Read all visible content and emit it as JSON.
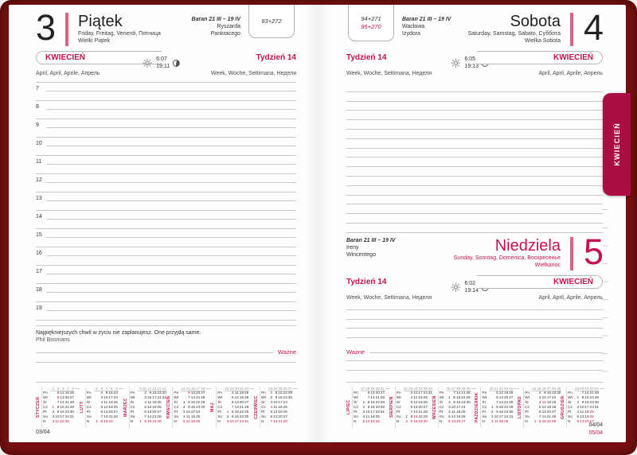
{
  "colors": {
    "accent": "#c4134c",
    "tab": "#ab0d44",
    "cover": "#7a1010",
    "rule_line": "#c7c7c7",
    "pink_bar": "#dc6480"
  },
  "tab_label": "KWIECIEŃ",
  "weekday_labels": [
    "Pn",
    "Wt",
    "Śr",
    "Cz",
    "Pt",
    "So",
    "N"
  ],
  "friday": {
    "day_number": "3",
    "day_name": "Piątek",
    "translations": "Friday, Freitag, Venerdi, Пятница",
    "holiday": "Wielki Piątek",
    "zodiac": "Baran 21 III – 19 IV",
    "nameday1": "Ryszarda",
    "nameday2": "Pankracego",
    "counter": "93+272",
    "month_label": "KWIECIEŃ",
    "month_translations": "April, April, Aprile, Апрель",
    "week_label": "Tydzień 14",
    "week_translations": "Week, Woche, Settimana, Неделя",
    "sunrise": "6:07",
    "sunset": "19:11",
    "hours": [
      "7",
      "8",
      "9",
      "10",
      "11",
      "12",
      "13",
      "14",
      "15",
      "16",
      "17",
      "18",
      "19"
    ],
    "quote": "Najpiękniejszych chwil w życiu nie zaplanujesz. One przyjdą same.",
    "quote_author": "Phil Bosmans",
    "important_label": "Ważne",
    "page_number": "03/04"
  },
  "saturday": {
    "day_number": "4",
    "day_name": "Sobota",
    "translations": "Saturday, Samstag, Sabato, Суббота",
    "holiday": "Wielka Sobota",
    "zodiac": "Baran 21 III – 19 IV",
    "nameday1": "Wacława",
    "nameday2": "Izydora",
    "counter1": "94+271",
    "counter2": "95+270",
    "month_label": "KWIECIEŃ",
    "month_translations": "April, April, Aprile, Апрель",
    "week_label": "Tydzień 14",
    "week_translations": "Week, Woche, Settimana, Неделя",
    "sunrise": "6:05",
    "sunset": "19:13"
  },
  "sunday": {
    "day_number": "5",
    "day_name": "Niedziela",
    "translations": "Sunday, Sonntag, Domenica, Воскресенье",
    "holiday": "Wielkanoc",
    "zodiac": "Baran 21 III – 19 IV",
    "nameday1": "Ireny",
    "nameday2": "Wincentego",
    "month_label": "KWIECIEŃ",
    "month_translations": "April, April, Aprile, Апрель",
    "week_label": "Tydzień 14",
    "week_translations": "Week, Woche, Settimana, Неделя",
    "sunrise": "6:02",
    "sunset": "19:14",
    "important_label": "Ważne"
  },
  "right_page_numbers": {
    "line1": "04/04",
    "line2": "05/04"
  },
  "mini_calendars_left": [
    {
      "name": "STYCZEŃ",
      "wk": [
        "1",
        "2",
        "3",
        "4",
        "5"
      ],
      "red": [
        "1",
        "6"
      ],
      "rows": [
        [
          "",
          "5",
          "12",
          "19",
          "26"
        ],
        [
          "",
          "6",
          "13",
          "20",
          "27"
        ],
        [
          "",
          "7",
          "14",
          "21",
          "28"
        ],
        [
          "1",
          "8",
          "15",
          "22",
          "29"
        ],
        [
          "2",
          "9",
          "16",
          "23",
          "30"
        ],
        [
          "3",
          "10",
          "17",
          "24",
          "31"
        ],
        [
          "4",
          "11",
          "18",
          "25",
          ""
        ]
      ]
    },
    {
      "name": "LUTY",
      "wk": [
        "5",
        "6",
        "7",
        "8",
        "9"
      ],
      "red": [],
      "rows": [
        [
          "",
          "2",
          "9",
          "16",
          "23"
        ],
        [
          "",
          "3",
          "10",
          "17",
          "24"
        ],
        [
          "",
          "4",
          "11",
          "18",
          "25"
        ],
        [
          "",
          "5",
          "12",
          "19",
          "26"
        ],
        [
          "",
          "6",
          "13",
          "20",
          "27"
        ],
        [
          "",
          "7",
          "14",
          "21",
          "28"
        ],
        [
          "1",
          "8",
          "15",
          "22",
          ""
        ]
      ]
    },
    {
      "name": "MARZEC",
      "wk": [
        "9",
        "10",
        "11",
        "12",
        "13",
        "14"
      ],
      "red": [],
      "rows": [
        [
          "",
          "2",
          "9",
          "16",
          "23",
          "30"
        ],
        [
          "",
          "3",
          "10",
          "17",
          "24",
          "31"
        ],
        [
          "",
          "4",
          "11",
          "18",
          "25",
          ""
        ],
        [
          "",
          "5",
          "12",
          "19",
          "26",
          ""
        ],
        [
          "",
          "6",
          "13",
          "20",
          "27",
          ""
        ],
        [
          "",
          "7",
          "14",
          "21",
          "28",
          ""
        ],
        [
          "1",
          "8",
          "15",
          "22",
          "29",
          ""
        ]
      ]
    },
    {
      "name": "KWIECIEŃ",
      "wk": [
        "14",
        "15",
        "16",
        "17",
        "18"
      ],
      "red": [
        "6"
      ],
      "rows": [
        [
          "",
          "6",
          "13",
          "20",
          "27"
        ],
        [
          "",
          "7",
          "14",
          "21",
          "28"
        ],
        [
          "1",
          "8",
          "15",
          "22",
          "29"
        ],
        [
          "2",
          "9",
          "16",
          "23",
          "30"
        ],
        [
          "3",
          "10",
          "17",
          "24",
          ""
        ],
        [
          "4",
          "11",
          "18",
          "25",
          ""
        ],
        [
          "5",
          "12",
          "19",
          "26",
          ""
        ]
      ]
    },
    {
      "name": "MAJ",
      "wk": [
        "18",
        "19",
        "20",
        "21",
        "22"
      ],
      "red": [
        "1"
      ],
      "rows": [
        [
          "",
          "4",
          "11",
          "18",
          "25"
        ],
        [
          "",
          "5",
          "12",
          "19",
          "26"
        ],
        [
          "",
          "6",
          "13",
          "20",
          "27"
        ],
        [
          "",
          "7",
          "14",
          "21",
          "28"
        ],
        [
          "1",
          "8",
          "15",
          "22",
          "29"
        ],
        [
          "2",
          "9",
          "16",
          "23",
          "30"
        ],
        [
          "3",
          "10",
          "17",
          "24",
          "31"
        ]
      ]
    },
    {
      "name": "CZERWIEC",
      "wk": [
        "23",
        "24",
        "25",
        "26",
        "27"
      ],
      "red": [
        "4"
      ],
      "rows": [
        [
          "1",
          "8",
          "15",
          "22",
          "29"
        ],
        [
          "2",
          "9",
          "16",
          "23",
          "30"
        ],
        [
          "3",
          "10",
          "17",
          "24",
          ""
        ],
        [
          "4",
          "11",
          "18",
          "25",
          ""
        ],
        [
          "5",
          "12",
          "19",
          "26",
          ""
        ],
        [
          "6",
          "13",
          "20",
          "27",
          ""
        ],
        [
          "7",
          "14",
          "21",
          "28",
          ""
        ]
      ]
    }
  ],
  "mini_calendars_right": [
    {
      "name": "LIPIEC",
      "wk": [
        "27",
        "28",
        "29",
        "30",
        "31"
      ],
      "red": [],
      "rows": [
        [
          "",
          "6",
          "13",
          "20",
          "27"
        ],
        [
          "",
          "7",
          "14",
          "21",
          "28"
        ],
        [
          "1",
          "8",
          "15",
          "22",
          "29"
        ],
        [
          "2",
          "9",
          "16",
          "23",
          "30"
        ],
        [
          "3",
          "10",
          "17",
          "24",
          "31"
        ],
        [
          "4",
          "11",
          "18",
          "25",
          ""
        ],
        [
          "5",
          "12",
          "19",
          "26",
          ""
        ]
      ]
    },
    {
      "name": "SIERPIEŃ",
      "wk": [
        "31",
        "32",
        "33",
        "34",
        "35",
        "36"
      ],
      "red": [
        "15"
      ],
      "rows": [
        [
          "",
          "3",
          "10",
          "17",
          "24",
          "31"
        ],
        [
          "",
          "4",
          "11",
          "18",
          "25",
          ""
        ],
        [
          "",
          "5",
          "12",
          "19",
          "26",
          ""
        ],
        [
          "",
          "6",
          "13",
          "20",
          "27",
          ""
        ],
        [
          "",
          "7",
          "14",
          "21",
          "28",
          ""
        ],
        [
          "1",
          "8",
          "15",
          "22",
          "29",
          ""
        ],
        [
          "2",
          "9",
          "16",
          "23",
          "30",
          ""
        ]
      ]
    },
    {
      "name": "WRZESIEŃ",
      "wk": [
        "36",
        "37",
        "38",
        "39",
        "40"
      ],
      "red": [],
      "rows": [
        [
          "",
          "7",
          "14",
          "21",
          "28"
        ],
        [
          "1",
          "8",
          "15",
          "22",
          "29"
        ],
        [
          "2",
          "9",
          "16",
          "23",
          "30"
        ],
        [
          "3",
          "10",
          "17",
          "24",
          ""
        ],
        [
          "4",
          "11",
          "18",
          "25",
          ""
        ],
        [
          "5",
          "12",
          "19",
          "26",
          ""
        ],
        [
          "6",
          "13",
          "20",
          "27",
          ""
        ]
      ]
    },
    {
      "name": "PAŹDZIERNIK",
      "wk": [
        "40",
        "41",
        "42",
        "43",
        "44"
      ],
      "red": [],
      "rows": [
        [
          "",
          "5",
          "12",
          "19",
          "26"
        ],
        [
          "",
          "6",
          "13",
          "20",
          "27"
        ],
        [
          "",
          "7",
          "14",
          "21",
          "28"
        ],
        [
          "1",
          "8",
          "15",
          "22",
          "29"
        ],
        [
          "2",
          "9",
          "16",
          "23",
          "30"
        ],
        [
          "3",
          "10",
          "17",
          "24",
          "31"
        ],
        [
          "4",
          "11",
          "18",
          "25",
          ""
        ]
      ]
    },
    {
      "name": "LISTOPAD",
      "wk": [
        "44",
        "45",
        "46",
        "47",
        "48",
        "49"
      ],
      "red": [
        "11"
      ],
      "rows": [
        [
          "",
          "2",
          "9",
          "16",
          "23",
          "30"
        ],
        [
          "",
          "3",
          "10",
          "17",
          "24",
          ""
        ],
        [
          "",
          "4",
          "11",
          "18",
          "25",
          ""
        ],
        [
          "",
          "5",
          "12",
          "19",
          "26",
          ""
        ],
        [
          "",
          "6",
          "13",
          "20",
          "27",
          ""
        ],
        [
          "",
          "7",
          "14",
          "21",
          "28",
          ""
        ],
        [
          "1",
          "8",
          "15",
          "22",
          "29",
          ""
        ]
      ]
    },
    {
      "name": "GRUDZIEŃ",
      "wk": [
        "49",
        "50",
        "51",
        "52",
        "53"
      ],
      "red": [
        "25",
        "26"
      ],
      "rows": [
        [
          "",
          "7",
          "14",
          "21",
          "28"
        ],
        [
          "1",
          "8",
          "15",
          "22",
          "29"
        ],
        [
          "2",
          "9",
          "16",
          "23",
          "30"
        ],
        [
          "3",
          "10",
          "17",
          "24",
          "31"
        ],
        [
          "4",
          "11",
          "18",
          "25",
          ""
        ],
        [
          "5",
          "12",
          "19",
          "26",
          ""
        ],
        [
          "6",
          "13",
          "20",
          "27",
          ""
        ]
      ]
    }
  ]
}
